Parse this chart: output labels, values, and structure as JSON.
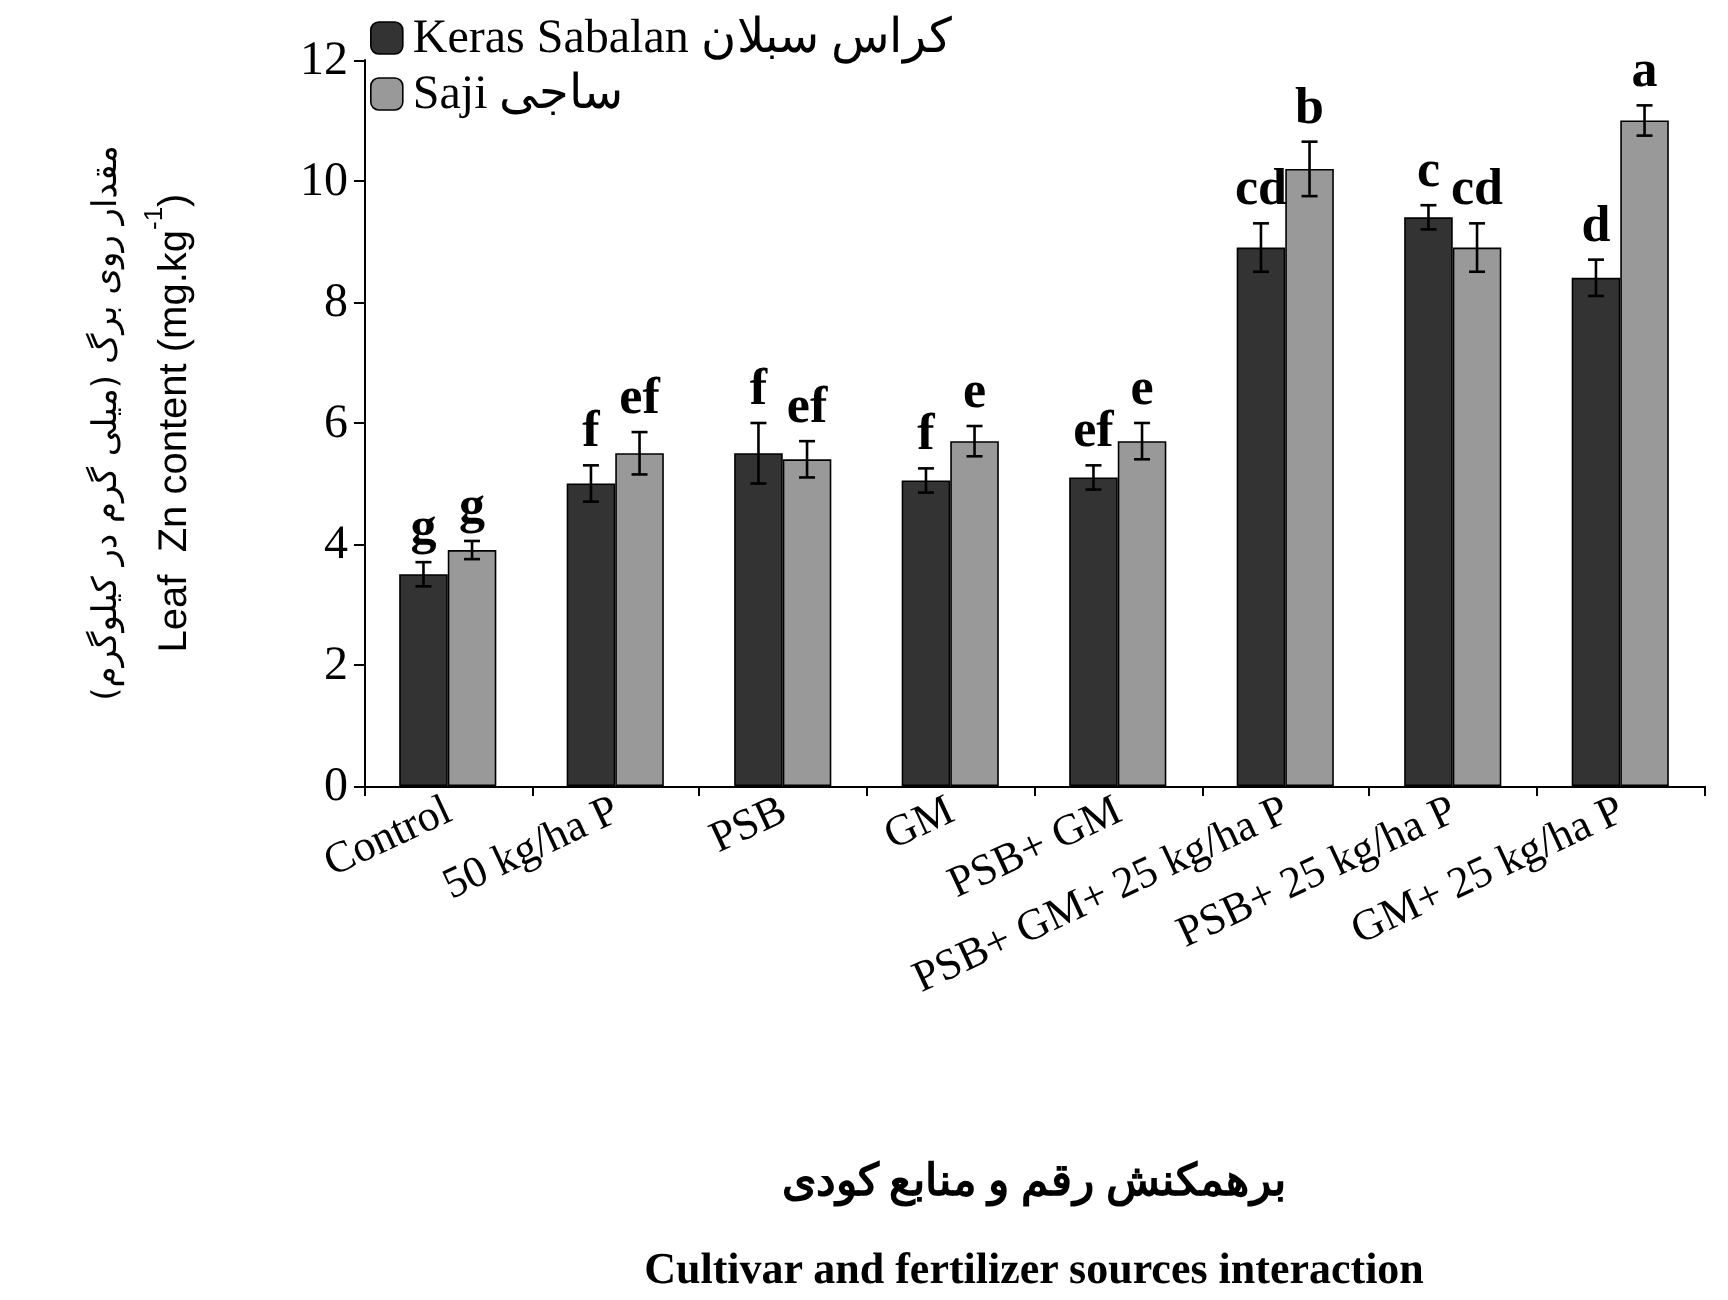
{
  "chart_data": {
    "type": "bar",
    "xlabel": "برهمکنش رقم و منابع کودی\nCultivar and fertilizer sources interaction",
    "ylabel": "مقدار روی برگ (میلی گرم در کیلوگرم)\nLeaf  Zn content (mg.kg$^{-1}$)",
    "categories": [
      "Control",
      "50 kg/ha P",
      "PSB",
      "GM",
      "PSB+ GM",
      "PSB+ GM+ 25 kg/ha P",
      "PSB+ 25 kg/ha P",
      "GM+ 25 kg/ha P"
    ],
    "series": [
      {
        "name": "Keras Sabalan کراس سبلان",
        "color": "#333333",
        "values": [
          3.5,
          5.0,
          5.5,
          5.05,
          5.1,
          8.9,
          9.4,
          8.4
        ],
        "errors": [
          0.2,
          0.3,
          0.5,
          0.2,
          0.2,
          0.4,
          0.2,
          0.3
        ]
      },
      {
        "name": "Saji ساجی",
        "color": "#999999",
        "values": [
          3.9,
          5.5,
          5.4,
          5.7,
          5.7,
          10.2,
          8.9,
          11.0
        ],
        "errors": [
          0.15,
          0.35,
          0.3,
          0.25,
          0.3,
          0.45,
          0.4,
          0.25
        ]
      }
    ],
    "ylim": [
      0,
      12
    ],
    "yticks": [
      0,
      2,
      4,
      6,
      8,
      10,
      12
    ],
    "grid": false,
    "legend": "top left",
    "annotations": [
      {
        "text": "g",
        "x": "Control",
        "y": 3.5
      },
      {
        "text": "g",
        "x": "Control",
        "y": 3.9
      },
      {
        "text": "f",
        "x": "50 kg/ha P",
        "y": 5.0
      },
      {
        "text": "ef",
        "x": "50 kg/ha P",
        "y": 5.5
      },
      {
        "text": "f",
        "x": "PSB",
        "y": 5.5
      },
      {
        "text": "ef",
        "x": "PSB",
        "y": 5.4
      },
      {
        "text": "f",
        "x": "GM",
        "y": 5.05
      },
      {
        "text": "e",
        "x": "GM",
        "y": 5.7
      },
      {
        "text": "ef",
        "x": "PSB+ GM",
        "y": 5.1
      },
      {
        "text": "e",
        "x": "PSB+ GM",
        "y": 5.7
      },
      {
        "text": "cd",
        "x": "PSB+ GM+ 25 kg/ha P",
        "y": 8.9
      },
      {
        "text": "b",
        "x": "PSB+ GM+ 25 kg/ha P",
        "y": 10.2
      },
      {
        "text": "c",
        "x": "PSB+ 25 kg/ha P",
        "y": 9.4
      },
      {
        "text": "cd",
        "x": "PSB+ 25 kg/ha P",
        "y": 8.9
      },
      {
        "text": "d",
        "x": "GM+ 25 kg/ha P",
        "y": 8.4
      },
      {
        "text": "a",
        "x": "GM+ 25 kg/ha P",
        "y": 11.0
      }
    ]
  }
}
